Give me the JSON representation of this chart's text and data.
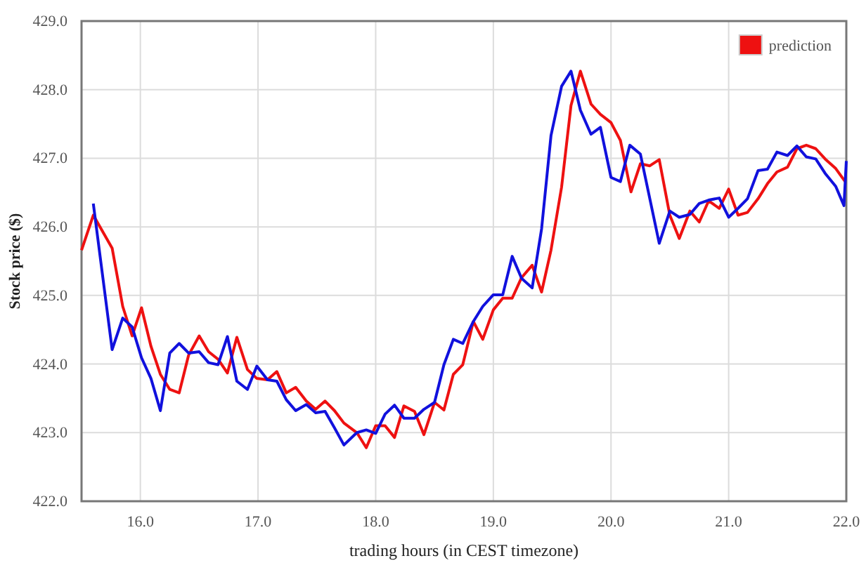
{
  "chart_data": {
    "type": "line",
    "xlabel": "trading hours (in CEST timezone)",
    "ylabel": "Stock price ($)",
    "xlim": [
      15.5,
      22.0
    ],
    "ylim": [
      422.0,
      429.0
    ],
    "xticks": [
      {
        "value": 16,
        "label": "16.0"
      },
      {
        "value": 17,
        "label": "17.0"
      },
      {
        "value": 18,
        "label": "18.0"
      },
      {
        "value": 19,
        "label": "19.0"
      },
      {
        "value": 20,
        "label": "20.0"
      },
      {
        "value": 21,
        "label": "21.0"
      },
      {
        "value": 22,
        "label": "22.0"
      }
    ],
    "yticks": [
      {
        "value": 422,
        "label": "422.0"
      },
      {
        "value": 423,
        "label": "423.0"
      },
      {
        "value": 424,
        "label": "424.0"
      },
      {
        "value": 425,
        "label": "425.0"
      },
      {
        "value": 426,
        "label": "426.0"
      },
      {
        "value": 427,
        "label": "427.0"
      },
      {
        "value": 428,
        "label": "428.0"
      },
      {
        "value": 429,
        "label": "429.0"
      }
    ],
    "grid": true,
    "legend": "top right",
    "line_style": "solid",
    "marker": "none",
    "series": [
      {
        "name": "prediction",
        "color": "#ee1111",
        "x": [
          15.5,
          15.6,
          15.76,
          15.85,
          15.93,
          16.01,
          16.09,
          16.17,
          16.25,
          16.33,
          16.41,
          16.5,
          16.58,
          16.66,
          16.74,
          16.82,
          16.91,
          16.99,
          17.08,
          17.16,
          17.24,
          17.32,
          17.41,
          17.49,
          17.57,
          17.65,
          17.73,
          17.84,
          17.92,
          18.0,
          18.08,
          18.16,
          18.24,
          18.33,
          18.41,
          18.5,
          18.58,
          18.66,
          18.74,
          18.83,
          18.91,
          19.0,
          19.08,
          19.16,
          19.24,
          19.33,
          19.41,
          19.49,
          19.58,
          19.66,
          19.74,
          19.83,
          19.91,
          20.0,
          20.08,
          20.17,
          20.25,
          20.33,
          20.41,
          20.5,
          20.58,
          20.67,
          20.75,
          20.83,
          20.92,
          21.0,
          21.08,
          21.16,
          21.25,
          21.33,
          21.41,
          21.5,
          21.58,
          21.66,
          21.74,
          21.82,
          21.91,
          21.99
        ],
        "values": [
          425.66,
          426.17,
          425.69,
          424.84,
          424.41,
          424.82,
          424.26,
          423.85,
          423.63,
          423.58,
          424.13,
          424.41,
          424.18,
          424.07,
          423.87,
          424.39,
          423.92,
          423.79,
          423.77,
          423.89,
          423.58,
          423.66,
          423.46,
          423.34,
          423.46,
          423.32,
          423.14,
          423.0,
          422.78,
          423.1,
          423.1,
          422.93,
          423.39,
          423.31,
          422.97,
          423.44,
          423.33,
          423.85,
          423.99,
          424.62,
          424.36,
          424.79,
          424.96,
          424.96,
          425.26,
          425.44,
          425.05,
          425.66,
          426.58,
          427.77,
          428.27,
          427.79,
          427.64,
          427.52,
          427.26,
          426.51,
          426.92,
          426.89,
          426.98,
          426.17,
          425.83,
          426.23,
          426.07,
          426.38,
          426.27,
          426.55,
          426.17,
          426.21,
          426.41,
          426.63,
          426.8,
          426.87,
          427.14,
          427.19,
          427.14,
          426.99,
          426.85,
          426.66
        ]
      },
      {
        "color": "#1111dd",
        "x": [
          15.6,
          15.76,
          15.85,
          15.93,
          16.01,
          16.09,
          16.17,
          16.25,
          16.33,
          16.41,
          16.5,
          16.58,
          16.66,
          16.74,
          16.82,
          16.91,
          16.99,
          17.08,
          17.16,
          17.24,
          17.32,
          17.41,
          17.49,
          17.57,
          17.65,
          17.73,
          17.84,
          17.92,
          18.0,
          18.08,
          18.16,
          18.24,
          18.33,
          18.41,
          18.5,
          18.58,
          18.66,
          18.74,
          18.83,
          18.91,
          19.0,
          19.08,
          19.16,
          19.24,
          19.33,
          19.41,
          19.49,
          19.58,
          19.66,
          19.74,
          19.83,
          19.91,
          20.0,
          20.08,
          20.16,
          20.25,
          20.33,
          20.41,
          20.5,
          20.58,
          20.67,
          20.75,
          20.83,
          20.92,
          21.0,
          21.08,
          21.16,
          21.25,
          21.33,
          21.41,
          21.5,
          21.58,
          21.66,
          21.74,
          21.82,
          21.91,
          21.98,
          22.0
        ],
        "values": [
          426.34,
          424.21,
          424.67,
          424.54,
          424.09,
          423.79,
          423.32,
          424.16,
          424.3,
          424.16,
          424.18,
          424.02,
          423.99,
          424.4,
          423.75,
          423.63,
          423.97,
          423.77,
          423.75,
          423.48,
          423.32,
          423.41,
          423.29,
          423.31,
          423.07,
          422.82,
          423.0,
          423.04,
          422.99,
          423.27,
          423.4,
          423.21,
          423.21,
          423.34,
          423.44,
          423.99,
          424.36,
          424.3,
          424.62,
          424.84,
          425.01,
          425.01,
          425.57,
          425.25,
          425.11,
          425.97,
          427.33,
          428.05,
          428.27,
          427.7,
          427.35,
          427.45,
          426.72,
          426.66,
          427.19,
          427.06,
          426.41,
          425.76,
          426.23,
          426.14,
          426.18,
          426.34,
          426.39,
          426.42,
          426.14,
          426.27,
          426.41,
          426.82,
          426.84,
          427.09,
          427.04,
          427.18,
          427.02,
          426.99,
          426.78,
          426.59,
          426.31,
          426.96
        ]
      }
    ]
  }
}
